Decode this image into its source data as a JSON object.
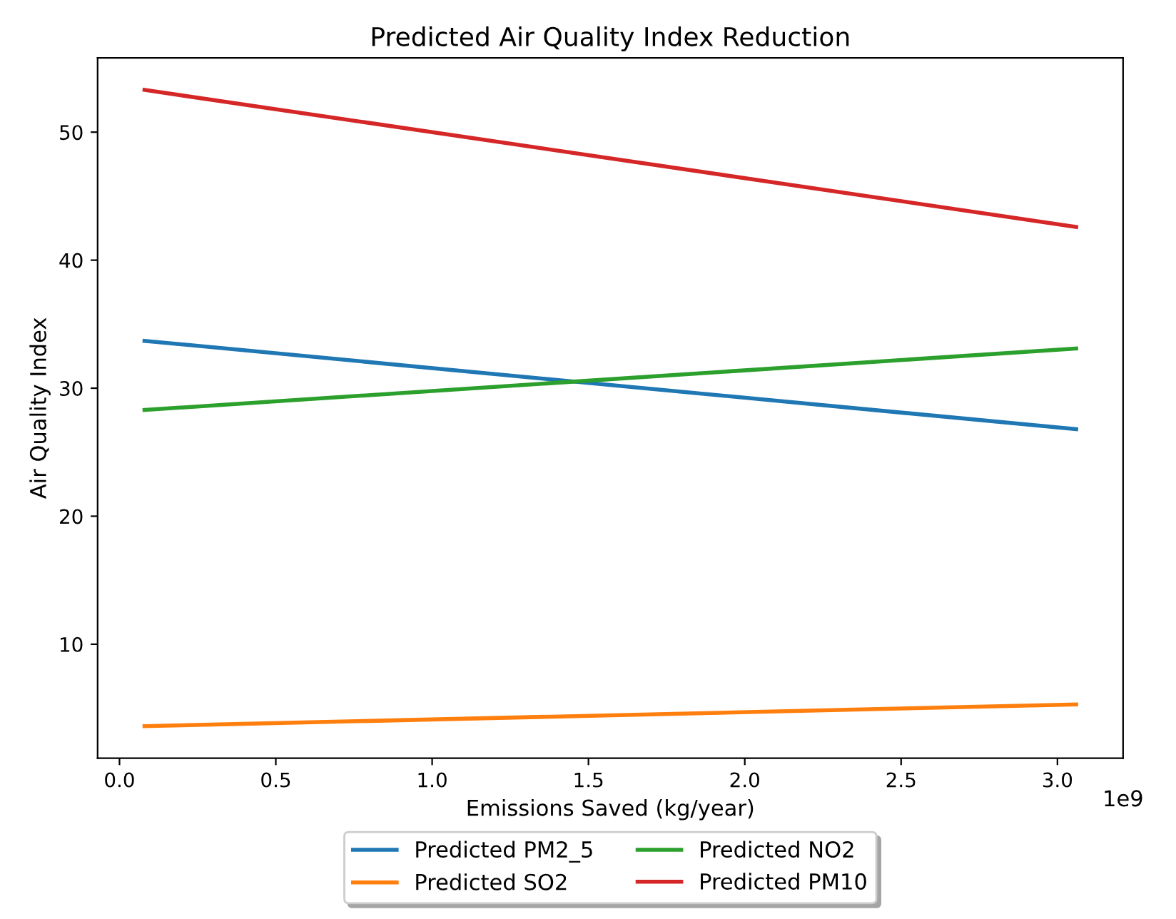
{
  "chart_data": {
    "type": "line",
    "title": "Predicted Air Quality Index Reduction",
    "xlabel": "Emissions Saved (kg/year)",
    "ylabel": "Air Quality Index",
    "x": [
      0.08,
      3.06
    ],
    "series": [
      {
        "name": "Predicted PM2_5",
        "color": "#1f77b4",
        "values": [
          33.7,
          26.8
        ]
      },
      {
        "name": "Predicted SO2",
        "color": "#ff7f0e",
        "values": [
          3.6,
          5.3
        ]
      },
      {
        "name": "Predicted NO2",
        "color": "#2ca02c",
        "values": [
          28.3,
          33.1
        ]
      },
      {
        "name": "Predicted PM10",
        "color": "#d62728",
        "values": [
          53.3,
          42.6
        ]
      }
    ],
    "xlim": [
      -0.07,
      3.21
    ],
    "ylim": [
      1.1,
      55.8
    ],
    "xticks": [
      {
        "value": 0,
        "label": "0.0"
      },
      0.5,
      {
        "value": 1,
        "label": "1.0"
      },
      1.5,
      {
        "value": 2,
        "label": "2.0"
      },
      2.5,
      {
        "value": 3,
        "label": "3.0"
      }
    ],
    "yticks": [
      10,
      20,
      30,
      40,
      50
    ],
    "annotations": [
      "1e9"
    ],
    "grid": false,
    "legend": "bottom",
    "marker": "none",
    "line_style": "solid"
  }
}
